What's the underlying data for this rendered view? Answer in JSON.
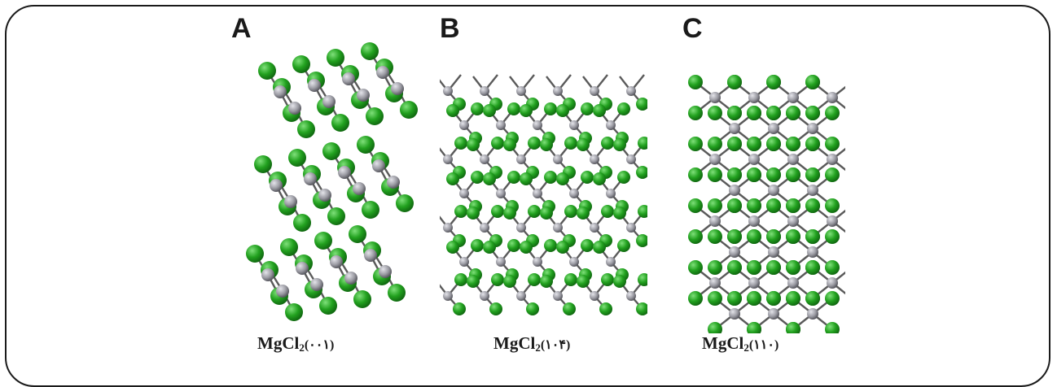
{
  "panels": [
    {
      "letter": "A",
      "formula": "MgCl",
      "subscript": "2",
      "surface": "(۰۰۱)"
    },
    {
      "letter": "B",
      "formula": "MgCl",
      "subscript": "2",
      "surface": "(۱۰۴)"
    },
    {
      "letter": "C",
      "formula": "MgCl",
      "subscript": "2",
      "surface": "(۱۱۰)"
    }
  ],
  "colors": {
    "chlorine": "#22a11f",
    "chlorine_highlight": "#7fe07a",
    "magnesium": "#9a9aa2",
    "magnesium_highlight": "#e4e4ea",
    "bond": "#5a5a5a",
    "frame": "#1a1a1a"
  }
}
